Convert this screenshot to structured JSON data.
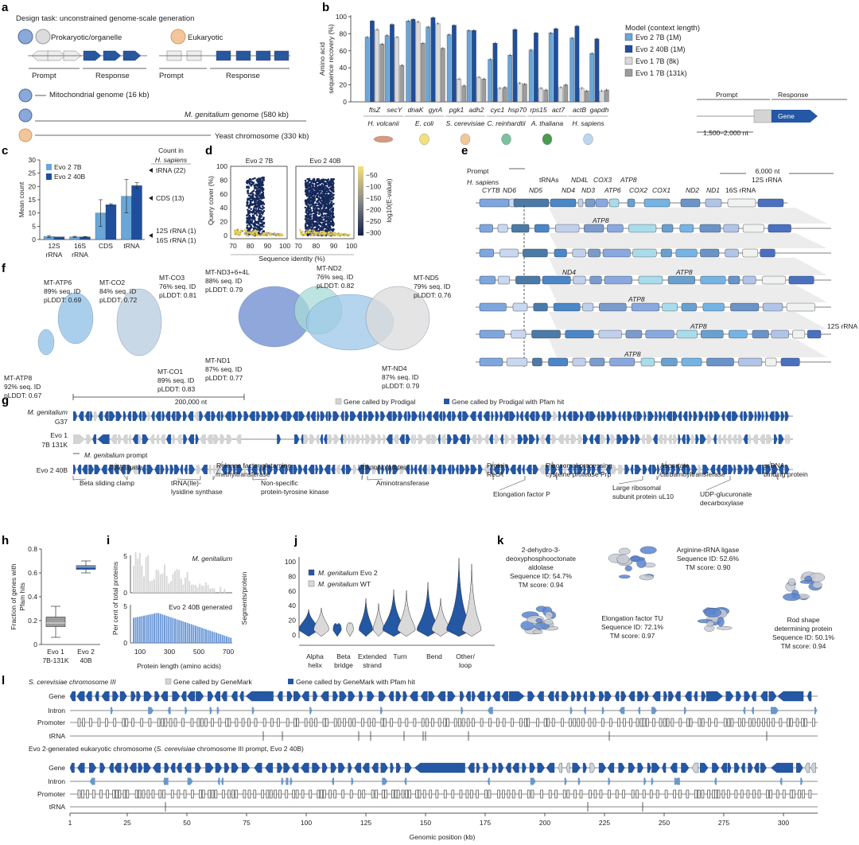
{
  "colors": {
    "evo2_7b": "#6aa6d8",
    "evo2_40b": "#1f4f9c",
    "evo1_8k": "#d9d9d9",
    "evo1_131k": "#9c9c9c",
    "pfam": "#2457a4",
    "gene_gray": "#d3d3d3",
    "intron": "#6a98cc"
  },
  "panels": {
    "a": "a",
    "b": "b",
    "c": "c",
    "d": "d",
    "e": "e",
    "f": "f",
    "g": "g",
    "h": "h",
    "i": "i",
    "j": "j",
    "k": "k",
    "l": "l"
  },
  "a": {
    "title": "Design task: unconstrained genome-scale generation",
    "prok": "Prokaryotic/organelle",
    "euk": "Eukaryotic",
    "prompt": "Prompt",
    "response": "Response",
    "mito": "Mitochondrial genome (16 kb)",
    "mgen_italic": "M. genitalium",
    "mgen_rest": " genome (580 kb)",
    "yeast": "Yeast chromosome (330 kb)"
  },
  "b": {
    "legend_title": "Model (context length)",
    "prompt": "Prompt",
    "response": "Response",
    "gene": "Gene",
    "length": "1,500–2,000 nt",
    "species": [
      "H. volcanii",
      "E. coli",
      "S. cerevisiae",
      "C. reinhardtii",
      "A. thaliana",
      "H. sapiens"
    ]
  },
  "c": {
    "count_title": "Count in",
    "count_species": "H. sapiens",
    "annotations": [
      "tRNA (22)",
      "CDS (13)",
      "12S rRNA (1)",
      "16S rRNA (1)"
    ],
    "cat_lines": [
      [
        "12S",
        "rRNA"
      ],
      [
        "16S",
        "rRNA"
      ],
      [
        "CDS",
        ""
      ],
      [
        "tRNA",
        ""
      ]
    ]
  },
  "d": {
    "titles": [
      "Evo 2 7B",
      "Evo 2 40B"
    ],
    "ylabel": "Query cover (%)",
    "xlabel": "Sequence identity (%)",
    "xticks": [
      "70",
      "80",
      "90",
      "100"
    ],
    "yticks": [
      "0",
      "20",
      "40",
      "60",
      "80",
      "100"
    ],
    "cbar_label": "log10(E-value)",
    "cbar_ticks": [
      "−50",
      "−100",
      "−150",
      "−200",
      "−250",
      "−300"
    ]
  },
  "e": {
    "prompt": "Prompt",
    "species": "H. sapiens",
    "scale": "6,000 nt",
    "genes": [
      "CYTB",
      "ND6",
      "ND5",
      "tRNAs",
      "ND4",
      "ND4L",
      "ND3",
      "COX3",
      "ATP6",
      "ATP8",
      "COX2",
      "COX1",
      "ND2",
      "ND1",
      "16S rRNA",
      "12S rRNA"
    ],
    "row_labels": [
      "ATP8",
      "ND4",
      "ATP8",
      "ATP8",
      "ATP8",
      "12S rRNA",
      "ATP8"
    ]
  },
  "f": {
    "labels": [
      [
        "MT-ATP6",
        "89% seq. ID",
        "pLDDT: 0.69"
      ],
      [
        "MT-CO2",
        "84% seq. ID",
        "pLDDT: 0.72"
      ],
      [
        "MT-CO3",
        "76% seq. ID",
        "pLDDT: 0.81"
      ],
      [
        "MT-ND3+6+4L",
        "88% seq. ID",
        "pLDDT: 0.79"
      ],
      [
        "MT-ND2",
        "76% seq. ID",
        "pLDDT: 0.82"
      ],
      [
        "MT-ND5",
        "79% seq. ID",
        "pLDDT: 0.76"
      ],
      [
        "MT-ATP8",
        "92% seq. ID",
        "pLDDT: 0.67"
      ],
      [
        "MT-CO1",
        "89% seq. ID",
        "pLDDT: 0.83"
      ],
      [
        "MT-ND1",
        "87% seq. ID",
        "pLDDT: 0.77"
      ],
      [
        "MT-ND4",
        "87% seq. ID",
        "pLDDT: 0.79"
      ]
    ]
  },
  "g": {
    "scale": "200,000 nt",
    "legend_gray": "Gene called by Prodigal",
    "legend_blue": "Gene called by Prodigal with Pfam hit",
    "tracks": [
      [
        "M. genitalium",
        "G37"
      ],
      [
        "Evo 1",
        "7B 131K"
      ],
      [
        "Evo 2 40B",
        ""
      ]
    ],
    "prompt_italic": "M. genitalium",
    "prompt_rest": " prompt",
    "annotations": [
      [
        "Beta sliding clamp",
        ""
      ],
      [
        "DNA ligase",
        ""
      ],
      [
        "tRNA(Ile)-",
        "lysidine synthase"
      ],
      [
        "Release factor glutamine",
        "methyltransferase"
      ],
      [
        "Non-specific",
        "protein-tyrosine kinase"
      ],
      [
        "Unknown protein",
        ""
      ],
      [
        "Aminotransferase",
        ""
      ],
      [
        "Protein",
        "RecA"
      ],
      [
        "Elongation factor P",
        ""
      ],
      [
        "Ribosomal processing",
        "cysteine protease Prp"
      ],
      [
        "Large ribosomal",
        "subunit protein uL10"
      ],
      [
        "Aspartate",
        "carbamoyltransferase"
      ],
      [
        "UDP-glucuronate",
        "decarboxylase"
      ],
      [
        "ssDNA",
        "binding protein"
      ]
    ]
  },
  "h": {
    "ylabel": [
      "Fraction of genes with",
      "Pfam hits"
    ],
    "yticks": [
      "0",
      "0.2",
      "0.4",
      "0.6",
      "0.8"
    ],
    "xlabels": [
      [
        "Evo 1",
        "7B-131K"
      ],
      [
        "Evo 2",
        "40B"
      ]
    ]
  },
  "i": {
    "ylabel": "Per cent of total proteins",
    "xlabel": "Protein length (amino acids)",
    "top_label": "M. genitalium",
    "bottom_label": "Evo 2 40B generated",
    "xticks": [
      "100",
      "300",
      "500",
      "700"
    ],
    "yticks": [
      "0",
      "5"
    ]
  },
  "j": {
    "ylabel": "Segments/protein",
    "yticks": [
      "0",
      "20",
      "40",
      "60",
      "80",
      "100"
    ],
    "legend": [
      [
        "M. genitalium",
        " Evo 2"
      ],
      [
        "M. genitalium",
        " WT"
      ]
    ],
    "categories": [
      [
        "Alpha",
        "helix"
      ],
      [
        "Beta",
        "bridge"
      ],
      [
        "Extended",
        "strand"
      ],
      [
        "Turn",
        ""
      ],
      [
        "Bend",
        ""
      ],
      [
        "Other/",
        "loop"
      ]
    ]
  },
  "k": {
    "proteins": [
      [
        "2-dehydro-3-",
        "deoxyphosphooctonate",
        "aldolase",
        "Sequence ID: 54.7%",
        "TM score: 0.94"
      ],
      [
        "Elongation factor TU",
        "Sequence ID: 72.1%",
        "TM score: 0.97"
      ],
      [
        "Arginine-tRNA ligase",
        "Sequence ID: 52.6%",
        "TM score: 0.90"
      ],
      [
        "Rod shape",
        "determining protein",
        "Sequence ID: 50.1%",
        "TM score: 0.94"
      ]
    ]
  },
  "l": {
    "title1": "S. cerevisiae chromosome III",
    "legend_gray": "Gene called by GeneMark",
    "legend_blue": "Gene called by GeneMark with Pfam hit",
    "title2_a": "Evo 2-generated eukaryotic chromosome (",
    "title2_it": "S. cerevisiae",
    "title2_b": " chromosome III prompt, Evo 2 40B)",
    "tracks": [
      "Gene",
      "Intron",
      "Promoter",
      "tRNA"
    ],
    "xticks": [
      "1",
      "25",
      "50",
      "75",
      "100",
      "125",
      "150",
      "175",
      "200",
      "225",
      "250",
      "275",
      "300"
    ],
    "xlabel": "Genomic position (kb)"
  },
  "chart_data": [
    {
      "panel": "b",
      "type": "bar",
      "ylabel": "Amino acid sequence recovery (%)",
      "ylim": [
        0,
        100
      ],
      "yticks": [
        "0",
        "20",
        "40",
        "60",
        "80",
        "100"
      ],
      "categories": [
        "ftsZ",
        "secY",
        "dnaK",
        "gyrA",
        "pgk1",
        "adh2",
        "cyc1",
        "hsp70",
        "rps15",
        "act7",
        "actB",
        "gapdh"
      ],
      "series": [
        {
          "name": "Evo 2 7B (1M)",
          "values": [
            76,
            78,
            95,
            88,
            79,
            84,
            50,
            55,
            61,
            81,
            75,
            57
          ]
        },
        {
          "name": "Evo 2 40B (1M)",
          "values": [
            95,
            91,
            97,
            99,
            90,
            84,
            69,
            85,
            81,
            86,
            89,
            74
          ]
        },
        {
          "name": "Evo 1 7B (8k)",
          "values": [
            85,
            76,
            94,
            92,
            27,
            29,
            16,
            22,
            16,
            17,
            16,
            13
          ]
        },
        {
          "name": "Evo 1 7B (131k)",
          "values": [
            68,
            43,
            69,
            63,
            19,
            27,
            17,
            21,
            14,
            20,
            13,
            14
          ]
        }
      ]
    },
    {
      "panel": "c",
      "type": "bar",
      "ylabel": "Mean count",
      "ylim": [
        0,
        30
      ],
      "yticks": [
        "0",
        "5",
        "10",
        "15",
        "20",
        "25",
        "30"
      ],
      "categories": [
        "12S rRNA",
        "16S rRNA",
        "CDS",
        "tRNA"
      ],
      "series": [
        {
          "name": "Evo 2 7B",
          "values": [
            1.1,
            1.0,
            10.0,
            16.3
          ],
          "err": [
            0.4,
            0.2,
            5,
            6.3
          ]
        },
        {
          "name": "Evo 2 40B",
          "values": [
            1.0,
            1.0,
            13.1,
            20.3
          ],
          "err": [
            0,
            0.1,
            0.4,
            1.1
          ]
        }
      ]
    },
    {
      "panel": "h",
      "type": "box",
      "ylim": [
        0,
        0.8
      ],
      "series": [
        {
          "name": "Evo 1 7B-131K",
          "min": 0.06,
          "q1": 0.15,
          "median": 0.18,
          "q3": 0.23,
          "max": 0.32
        },
        {
          "name": "Evo 2 40B",
          "min": 0.6,
          "q1": 0.63,
          "median": 0.65,
          "q3": 0.66,
          "max": 0.7
        }
      ]
    }
  ]
}
